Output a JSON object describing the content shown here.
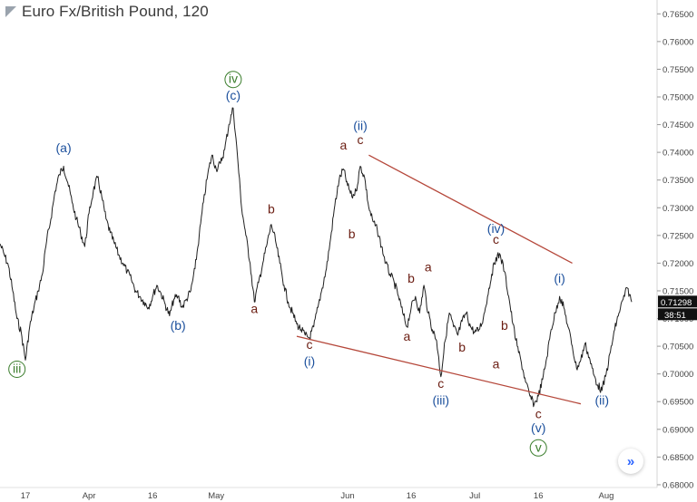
{
  "header": {
    "title": "Euro Fx/British Pound, 120"
  },
  "nav": {
    "next_icon": "»"
  },
  "colors": {
    "price": "#1f1f1f",
    "blue": "#1b4f9c",
    "brown": "#6b1d12",
    "green": "#3a7d2c",
    "trend": "#b5473a",
    "axis_text": "#444444"
  },
  "chart_data": {
    "type": "line",
    "title": "Euro Fx/British Pound, 120",
    "ylim": [
      0.6795,
      0.7675
    ],
    "xlim": [
      "2018-03-11",
      "2018-08-13"
    ],
    "y_ticks": [
      "0.76500",
      "0.76000",
      "0.75500",
      "0.75000",
      "0.74500",
      "0.74000",
      "0.73500",
      "0.73000",
      "0.72500",
      "0.72000",
      "0.71500",
      "0.71000",
      "0.70500",
      "0.70000",
      "0.69500",
      "0.69000",
      "0.68500",
      "0.68000"
    ],
    "y_tick_values": [
      0.765,
      0.76,
      0.755,
      0.75,
      0.745,
      0.74,
      0.735,
      0.73,
      0.725,
      0.72,
      0.715,
      0.71,
      0.705,
      0.7,
      0.695,
      0.69,
      0.685,
      0.68
    ],
    "x_ticks": [
      {
        "date": "2018-03-17",
        "label": "17"
      },
      {
        "date": "2018-04-01",
        "label": "Apr"
      },
      {
        "date": "2018-04-16",
        "label": "16"
      },
      {
        "date": "2018-05-01",
        "label": "May"
      },
      {
        "date": "2018-06-01",
        "label": "Jun"
      },
      {
        "date": "2018-06-16",
        "label": "16"
      },
      {
        "date": "2018-07-01",
        "label": "Jul"
      },
      {
        "date": "2018-07-16",
        "label": "16"
      },
      {
        "date": "2018-08-01",
        "label": "Aug"
      }
    ],
    "series": [
      {
        "values": [
          [
            "2018-03-11",
            0.7235
          ],
          [
            "2018-03-12",
            0.7215
          ],
          [
            "2018-03-13",
            0.7195
          ],
          [
            "2018-03-14",
            0.715
          ],
          [
            "2018-03-15",
            0.71
          ],
          [
            "2018-03-16",
            0.7075
          ],
          [
            "2018-03-17",
            0.7025
          ],
          [
            "2018-03-18",
            0.7085
          ],
          [
            "2018-03-19",
            0.712
          ],
          [
            "2018-03-20",
            0.715
          ],
          [
            "2018-03-21",
            0.718
          ],
          [
            "2018-03-22",
            0.724
          ],
          [
            "2018-03-23",
            0.728
          ],
          [
            "2018-03-24",
            0.733
          ],
          [
            "2018-03-25",
            0.736
          ],
          [
            "2018-03-26",
            0.7375
          ],
          [
            "2018-03-27",
            0.7345
          ],
          [
            "2018-03-28",
            0.731
          ],
          [
            "2018-03-29",
            0.728
          ],
          [
            "2018-03-30",
            0.7255
          ],
          [
            "2018-03-31",
            0.723
          ],
          [
            "2018-04-01",
            0.729
          ],
          [
            "2018-04-02",
            0.733
          ],
          [
            "2018-04-03",
            0.7355
          ],
          [
            "2018-04-04",
            0.732
          ],
          [
            "2018-04-05",
            0.728
          ],
          [
            "2018-04-06",
            0.7255
          ],
          [
            "2018-04-07",
            0.7235
          ],
          [
            "2018-04-08",
            0.7215
          ],
          [
            "2018-04-09",
            0.72
          ],
          [
            "2018-04-10",
            0.7185
          ],
          [
            "2018-04-11",
            0.717
          ],
          [
            "2018-04-12",
            0.715
          ],
          [
            "2018-04-13",
            0.714
          ],
          [
            "2018-04-14",
            0.713
          ],
          [
            "2018-04-15",
            0.712
          ],
          [
            "2018-04-16",
            0.714
          ],
          [
            "2018-04-17",
            0.716
          ],
          [
            "2018-04-18",
            0.7145
          ],
          [
            "2018-04-19",
            0.7125
          ],
          [
            "2018-04-20",
            0.7105
          ],
          [
            "2018-04-21",
            0.7135
          ],
          [
            "2018-04-22",
            0.714
          ],
          [
            "2018-04-23",
            0.712
          ],
          [
            "2018-04-24",
            0.7135
          ],
          [
            "2018-04-25",
            0.715
          ],
          [
            "2018-04-26",
            0.719
          ],
          [
            "2018-04-27",
            0.725
          ],
          [
            "2018-04-28",
            0.731
          ],
          [
            "2018-04-29",
            0.736
          ],
          [
            "2018-04-30",
            0.7395
          ],
          [
            "2018-05-01",
            0.737
          ],
          [
            "2018-05-02",
            0.738
          ],
          [
            "2018-05-03",
            0.7405
          ],
          [
            "2018-05-04",
            0.745
          ],
          [
            "2018-05-05",
            0.748
          ],
          [
            "2018-05-06",
            0.7395
          ],
          [
            "2018-05-07",
            0.73
          ],
          [
            "2018-05-08",
            0.725
          ],
          [
            "2018-05-09",
            0.72
          ],
          [
            "2018-05-10",
            0.713
          ],
          [
            "2018-05-11",
            0.7165
          ],
          [
            "2018-05-12",
            0.72
          ],
          [
            "2018-05-13",
            0.7235
          ],
          [
            "2018-05-14",
            0.727
          ],
          [
            "2018-05-15",
            0.724
          ],
          [
            "2018-05-16",
            0.72
          ],
          [
            "2018-05-17",
            0.716
          ],
          [
            "2018-05-18",
            0.713
          ],
          [
            "2018-05-19",
            0.711
          ],
          [
            "2018-05-20",
            0.709
          ],
          [
            "2018-05-21",
            0.708
          ],
          [
            "2018-05-22",
            0.707
          ],
          [
            "2018-05-23",
            0.7065
          ],
          [
            "2018-05-24",
            0.7085
          ],
          [
            "2018-05-25",
            0.712
          ],
          [
            "2018-05-26",
            0.7155
          ],
          [
            "2018-05-27",
            0.719
          ],
          [
            "2018-05-28",
            0.7245
          ],
          [
            "2018-05-29",
            0.7305
          ],
          [
            "2018-05-30",
            0.735
          ],
          [
            "2018-05-31",
            0.737
          ],
          [
            "2018-06-01",
            0.734
          ],
          [
            "2018-06-02",
            0.732
          ],
          [
            "2018-06-03",
            0.733
          ],
          [
            "2018-06-04",
            0.7375
          ],
          [
            "2018-06-05",
            0.7355
          ],
          [
            "2018-06-06",
            0.73
          ],
          [
            "2018-06-07",
            0.7275
          ],
          [
            "2018-06-08",
            0.726
          ],
          [
            "2018-06-09",
            0.723
          ],
          [
            "2018-06-10",
            0.72
          ],
          [
            "2018-06-11",
            0.718
          ],
          [
            "2018-06-12",
            0.7165
          ],
          [
            "2018-06-13",
            0.714
          ],
          [
            "2018-06-14",
            0.711
          ],
          [
            "2018-06-15",
            0.7085
          ],
          [
            "2018-06-16",
            0.712
          ],
          [
            "2018-06-17",
            0.714
          ],
          [
            "2018-06-18",
            0.711
          ],
          [
            "2018-06-19",
            0.716
          ],
          [
            "2018-06-20",
            0.711
          ],
          [
            "2018-06-21",
            0.708
          ],
          [
            "2018-06-22",
            0.706
          ],
          [
            "2018-06-23",
            0.6995
          ],
          [
            "2018-06-24",
            0.706
          ],
          [
            "2018-06-25",
            0.711
          ],
          [
            "2018-06-26",
            0.7085
          ],
          [
            "2018-06-27",
            0.707
          ],
          [
            "2018-06-28",
            0.7095
          ],
          [
            "2018-06-29",
            0.711
          ],
          [
            "2018-06-30",
            0.7085
          ],
          [
            "2018-07-01",
            0.7075
          ],
          [
            "2018-07-02",
            0.708
          ],
          [
            "2018-07-03",
            0.71
          ],
          [
            "2018-07-04",
            0.714
          ],
          [
            "2018-07-05",
            0.718
          ],
          [
            "2018-07-06",
            0.721
          ],
          [
            "2018-07-07",
            0.7215
          ],
          [
            "2018-07-08",
            0.7185
          ],
          [
            "2018-07-09",
            0.714
          ],
          [
            "2018-07-10",
            0.709
          ],
          [
            "2018-07-11",
            0.705
          ],
          [
            "2018-07-12",
            0.702
          ],
          [
            "2018-07-13",
            0.6985
          ],
          [
            "2018-07-14",
            0.696
          ],
          [
            "2018-07-15",
            0.6945
          ],
          [
            "2018-07-16",
            0.696
          ],
          [
            "2018-07-17",
            0.699
          ],
          [
            "2018-07-18",
            0.703
          ],
          [
            "2018-07-19",
            0.708
          ],
          [
            "2018-07-20",
            0.711
          ],
          [
            "2018-07-21",
            0.714
          ],
          [
            "2018-07-22",
            0.712
          ],
          [
            "2018-07-23",
            0.7085
          ],
          [
            "2018-07-24",
            0.705
          ],
          [
            "2018-07-25",
            0.701
          ],
          [
            "2018-07-26",
            0.7025
          ],
          [
            "2018-07-27",
            0.7055
          ],
          [
            "2018-07-28",
            0.703
          ],
          [
            "2018-07-29",
            0.7
          ],
          [
            "2018-07-30",
            0.698
          ],
          [
            "2018-07-31",
            0.697
          ],
          [
            "2018-08-01",
            0.7
          ],
          [
            "2018-08-02",
            0.704
          ],
          [
            "2018-08-03",
            0.708
          ],
          [
            "2018-08-04",
            0.711
          ],
          [
            "2018-08-05",
            0.7135
          ],
          [
            "2018-08-06",
            0.7155
          ],
          [
            "2018-08-07",
            0.713
          ]
        ]
      }
    ],
    "last_price": "0.71298",
    "countdown": "38:51",
    "trendlines": [
      {
        "from": [
          "2018-06-06",
          0.7395
        ],
        "to": [
          "2018-07-24",
          0.72
        ]
      },
      {
        "from": [
          "2018-05-20",
          0.7068
        ],
        "to": [
          "2018-07-26",
          0.6946
        ]
      }
    ],
    "annotations": [
      {
        "text": "(a)",
        "date": "2018-03-26",
        "value": 0.74,
        "color": "blue"
      },
      {
        "text": "iii",
        "date": "2018-03-15",
        "value": 0.7002,
        "color": "green",
        "circle": true
      },
      {
        "text": "(b)",
        "date": "2018-04-22",
        "value": 0.708,
        "color": "blue"
      },
      {
        "text": "iv",
        "date": "2018-05-05",
        "value": 0.7525,
        "color": "green",
        "circle": true
      },
      {
        "text": "(c)",
        "date": "2018-05-05",
        "value": 0.7495,
        "color": "blue"
      },
      {
        "text": "b",
        "date": "2018-05-14",
        "value": 0.729,
        "color": "brown"
      },
      {
        "text": "a",
        "date": "2018-05-10",
        "value": 0.711,
        "color": "brown"
      },
      {
        "text": "c",
        "date": "2018-05-23",
        "value": 0.7045,
        "color": "brown"
      },
      {
        "text": "(i)",
        "date": "2018-05-23",
        "value": 0.7015,
        "color": "blue"
      },
      {
        "text": "a",
        "date": "2018-05-31",
        "value": 0.7405,
        "color": "brown"
      },
      {
        "text": "c",
        "date": "2018-06-04",
        "value": 0.7415,
        "color": "brown"
      },
      {
        "text": "(ii)",
        "date": "2018-06-04",
        "value": 0.744,
        "color": "blue"
      },
      {
        "text": "b",
        "date": "2018-06-02",
        "value": 0.7245,
        "color": "brown"
      },
      {
        "text": "b",
        "date": "2018-06-16",
        "value": 0.7165,
        "color": "brown"
      },
      {
        "text": "a",
        "date": "2018-06-20",
        "value": 0.7185,
        "color": "brown"
      },
      {
        "text": "a",
        "date": "2018-06-15",
        "value": 0.706,
        "color": "brown"
      },
      {
        "text": "c",
        "date": "2018-06-23",
        "value": 0.6975,
        "color": "brown"
      },
      {
        "text": "(iii)",
        "date": "2018-06-23",
        "value": 0.6945,
        "color": "blue"
      },
      {
        "text": "b",
        "date": "2018-06-28",
        "value": 0.704,
        "color": "brown"
      },
      {
        "text": "(iv)",
        "date": "2018-07-06",
        "value": 0.7255,
        "color": "blue"
      },
      {
        "text": "c",
        "date": "2018-07-06",
        "value": 0.7235,
        "color": "brown"
      },
      {
        "text": "b",
        "date": "2018-07-08",
        "value": 0.708,
        "color": "brown"
      },
      {
        "text": "a",
        "date": "2018-07-06",
        "value": 0.701,
        "color": "brown"
      },
      {
        "text": "c",
        "date": "2018-07-16",
        "value": 0.692,
        "color": "brown"
      },
      {
        "text": "(v)",
        "date": "2018-07-16",
        "value": 0.6895,
        "color": "blue"
      },
      {
        "text": "v",
        "date": "2018-07-16",
        "value": 0.686,
        "color": "green",
        "circle": true
      },
      {
        "text": "(i)",
        "date": "2018-07-21",
        "value": 0.7165,
        "color": "blue"
      },
      {
        "text": "(ii)",
        "date": "2018-07-31",
        "value": 0.6945,
        "color": "blue"
      }
    ]
  }
}
